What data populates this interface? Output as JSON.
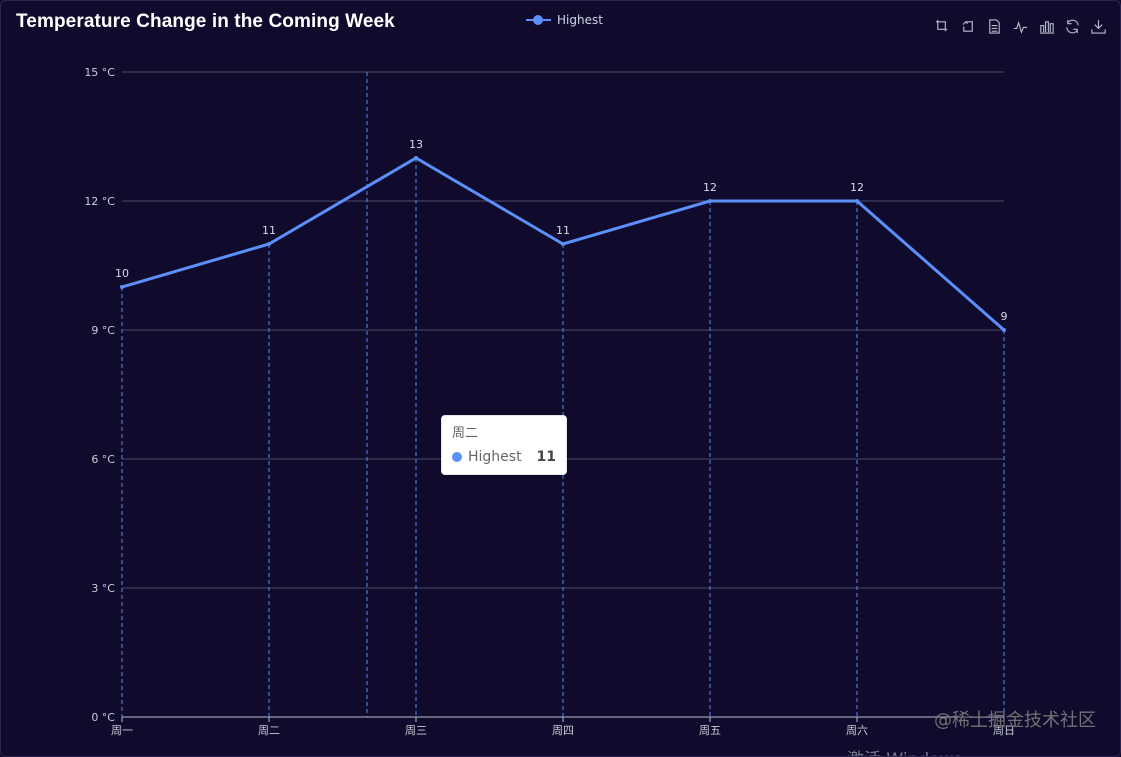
{
  "chart_data": {
    "type": "line",
    "title": "Temperature Change in the Coming Week",
    "categories": [
      "周一",
      "周二",
      "周三",
      "周四",
      "周五",
      "周六",
      "周日"
    ],
    "series": [
      {
        "name": "Highest",
        "values": [
          10,
          11,
          13,
          11,
          12,
          12,
          9
        ]
      }
    ],
    "y_ticks": [
      0,
      3,
      6,
      9,
      12,
      15
    ],
    "y_tick_labels": [
      "0 °C",
      "3 °C",
      "6 °C",
      "9 °C",
      "12 °C",
      "15 °C"
    ],
    "ylim": [
      0,
      15
    ],
    "xlabel": "",
    "ylabel": "",
    "legend": "top-center",
    "grid": true,
    "colors": {
      "background": "#100b2c",
      "line": "#5b8ff9",
      "grid": "#4d4a66",
      "dashed": "#5b8ff9"
    }
  },
  "tooltip": {
    "title": "周二",
    "series": "Highest",
    "value": "11"
  },
  "toolbox": [
    "zoom-icon",
    "zoom-reset-icon",
    "data-view-icon",
    "line-chart-icon",
    "bar-chart-icon",
    "restore-icon",
    "save-image-icon"
  ],
  "watermark": "@稀土掘金技术社区",
  "activation_text": "激活 Windows"
}
